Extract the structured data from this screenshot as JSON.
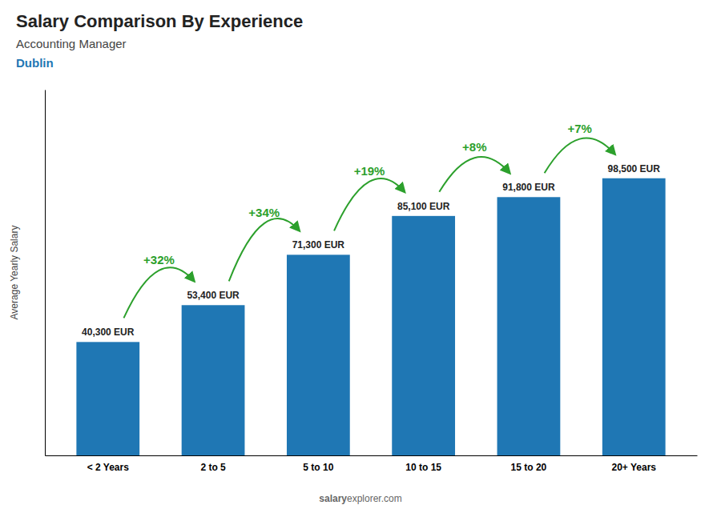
{
  "chart_data": {
    "type": "bar",
    "title": "Salary Comparison By Experience",
    "subtitle": "Accounting Manager",
    "city": "Dublin",
    "ylabel": "Average Yearly Salary",
    "categories": [
      "< 2 Years",
      "2 to 5",
      "5 to 10",
      "10 to 15",
      "15 to 20",
      "20+ Years"
    ],
    "values": [
      40300,
      53400,
      71300,
      85100,
      91800,
      98500
    ],
    "value_labels": [
      "40,300 EUR",
      "53,400 EUR",
      "71,300 EUR",
      "85,100 EUR",
      "91,800 EUR",
      "98,500 EUR"
    ],
    "data_labels": true,
    "annotations": [
      "+32%",
      "+34%",
      "+19%",
      "+8%",
      "+7%"
    ],
    "watermark": [
      "salary",
      "explorer.com"
    ],
    "ylim": [
      0,
      130000
    ],
    "grid": false,
    "tick_labels": "x"
  }
}
